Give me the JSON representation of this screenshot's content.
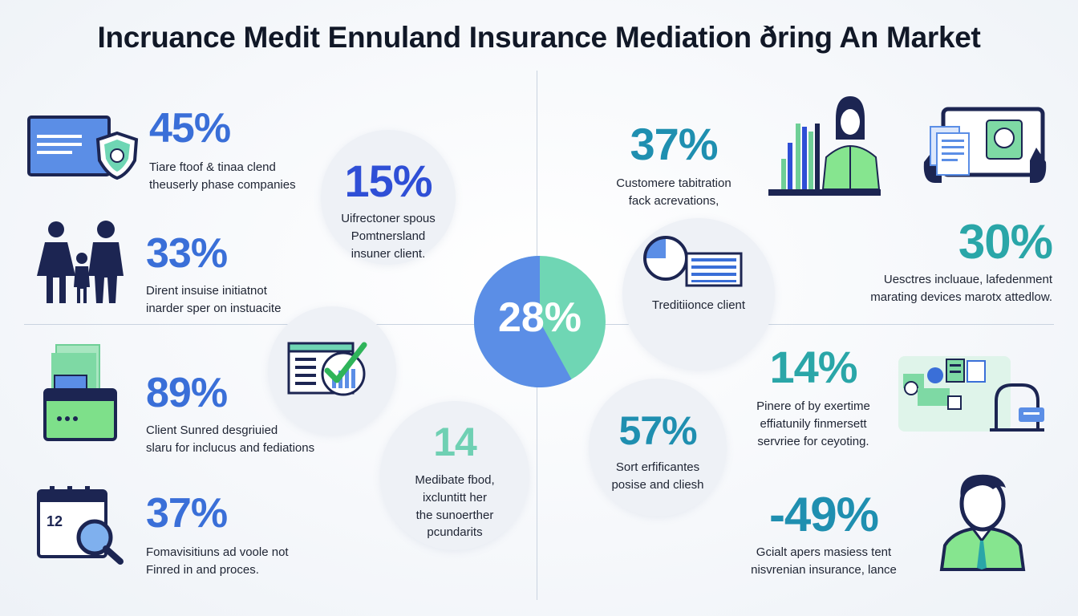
{
  "title": "Incruance Medit Ennuland Insurance Mediation ðring An Market",
  "center": {
    "value": "28%",
    "share_left": 0.58,
    "colors": {
      "left": "#5b8ee6",
      "right": "#6fd6b4"
    }
  },
  "left_stats": [
    {
      "value": "45%",
      "line1": "Tiare ftoof & tinaa clend",
      "line2": "theuserly phase companies",
      "icon": "laptop-shield-icon"
    },
    {
      "value": "33%",
      "line1": "Dirent insuise initiatnot",
      "line2": "inarder sper on instuacite",
      "icon": "family-icon"
    },
    {
      "value": "89%",
      "line1": "Client Sunred desgriuied",
      "line2": "slaru for inclucus and fediations",
      "icon": "wallet-documents-icon"
    },
    {
      "value": "37%",
      "line1": "Fomavisitiuns ad voole not",
      "line2": "Finred in and proces.",
      "icon": "calendar-search-icon",
      "calendar_number": "12"
    }
  ],
  "right_stats": [
    {
      "value": "37%",
      "line1": "Customere tabitration",
      "line2": "fack acrevations,",
      "icon": "presenter-chart-icon"
    },
    {
      "value": "30%",
      "line1": "Uesctres incluaue, lafedenment",
      "line2": "marating devices marotx attedlow.",
      "icon": "tablet-documents-icon"
    },
    {
      "value": "14%",
      "line1": "Pinere of by exertime",
      "line2": "effiatunily finmersett",
      "line3": "servriee for ceyoting.",
      "icon": "devices-network-icon"
    },
    {
      "value": "-49%",
      "line1": "Gcialt apers masiess tent",
      "line2": "nisvrenian insurance, lance",
      "icon": "person-tie-icon"
    }
  ],
  "bubbles": [
    {
      "value": "15%",
      "line1": "Uifrectoner spous",
      "line2": "Pomtnersland",
      "line3": "insuner client."
    },
    {
      "value": "",
      "line1": "Treditiionce client",
      "icon": "pie-document-icon"
    },
    {
      "value": "",
      "icon": "checklist-chart-icon"
    },
    {
      "value": "14",
      "line1": "Medibate fbod,",
      "line2": "ixcluntitt her",
      "line3": "the sunoerther",
      "line4": "pcundarits"
    },
    {
      "value": "57%",
      "line1": "Sort erfificantes",
      "line2": "posise and cliesh"
    }
  ]
}
